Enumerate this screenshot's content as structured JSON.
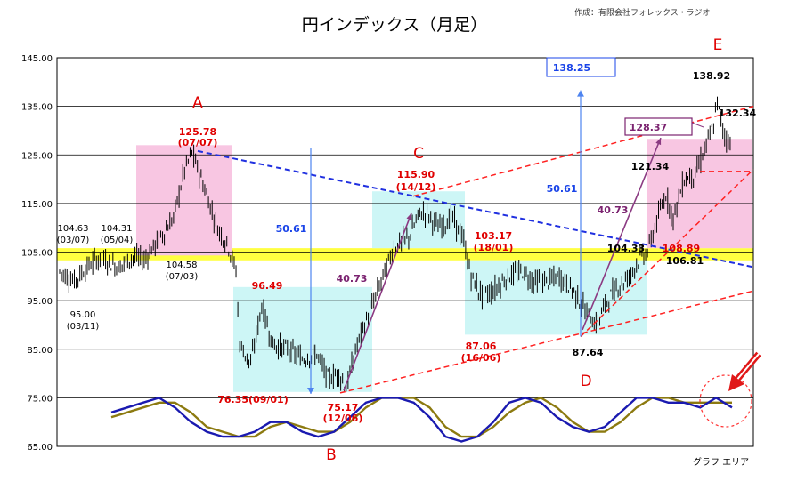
{
  "title": "円インデックス（月足）",
  "credit": "作成：有限会社フォレックス・ラジオ",
  "area_label": "グラフ エリア",
  "colors": {
    "candle": "#000000",
    "pink_zone": "#f8c6e2",
    "cyan_zone": "#cdf6f6",
    "yellow_band": "#ffff40",
    "red_dash": "#ff2020",
    "blue_dash": "#2030e0",
    "measure_line": "#4e84f0",
    "purple_arrow": "#8b3a82",
    "osc_fast": "#1a1ab0",
    "osc_slow": "#8c7a10",
    "label_red": "#e00000",
    "label_purple": "#7b2370",
    "label_blue": "#1a44e8"
  },
  "chart_data": {
    "type": "candlestick-with-oscillator",
    "y_ticks": [
      "145.00",
      "135.00",
      "125.00",
      "115.00",
      "105.00",
      "95.00",
      "85.00",
      "75.00",
      "65.00"
    ],
    "ylim": [
      65,
      145
    ],
    "key_points": [
      {
        "letter": "A",
        "value": "125.78",
        "date": "(07/07)"
      },
      {
        "letter": "B",
        "value": "75.17",
        "date": "(12/06)"
      },
      {
        "letter": "C",
        "value": "115.90",
        "date": "(14/12)"
      },
      {
        "letter": "D",
        "value": "87.64",
        "date": ""
      },
      {
        "letter": "E",
        "value": "138.92",
        "date": ""
      }
    ],
    "annotations": [
      {
        "id": "left-a",
        "value": "104.63",
        "date": "(03/07)"
      },
      {
        "id": "left-b",
        "value": "104.31",
        "date": "(05/04)"
      },
      {
        "id": "left-c",
        "value": "104.58",
        "date": "(07/03)"
      },
      {
        "id": "left-low",
        "value": "95.00",
        "date": "(03/11)"
      },
      {
        "id": "b-high",
        "value": "96.49",
        "date": ""
      },
      {
        "id": "b-low",
        "value": "76.35(09/01)",
        "date": ""
      },
      {
        "id": "d-mid",
        "value": "103.17",
        "date": "(18/01)"
      },
      {
        "id": "d-low",
        "value": "87.06",
        "date": "(16/06)"
      },
      {
        "id": "e-a",
        "value": "104.33",
        "date": ""
      },
      {
        "id": "e-b",
        "value": "108.89",
        "date": ""
      },
      {
        "id": "e-c",
        "value": "106.81",
        "date": ""
      },
      {
        "id": "e-d",
        "value": "121.34",
        "date": ""
      },
      {
        "id": "e-e",
        "value": "132.34",
        "date": ""
      }
    ],
    "measures": [
      {
        "id": "m1",
        "text": "50.61"
      },
      {
        "id": "m2",
        "text": "50.61"
      },
      {
        "id": "target",
        "text": "138.25"
      }
    ],
    "ranges": [
      {
        "id": "r1",
        "text": "40.73"
      },
      {
        "id": "r2",
        "text": "40.73"
      },
      {
        "id": "r3",
        "text": "128.37"
      }
    ]
  }
}
